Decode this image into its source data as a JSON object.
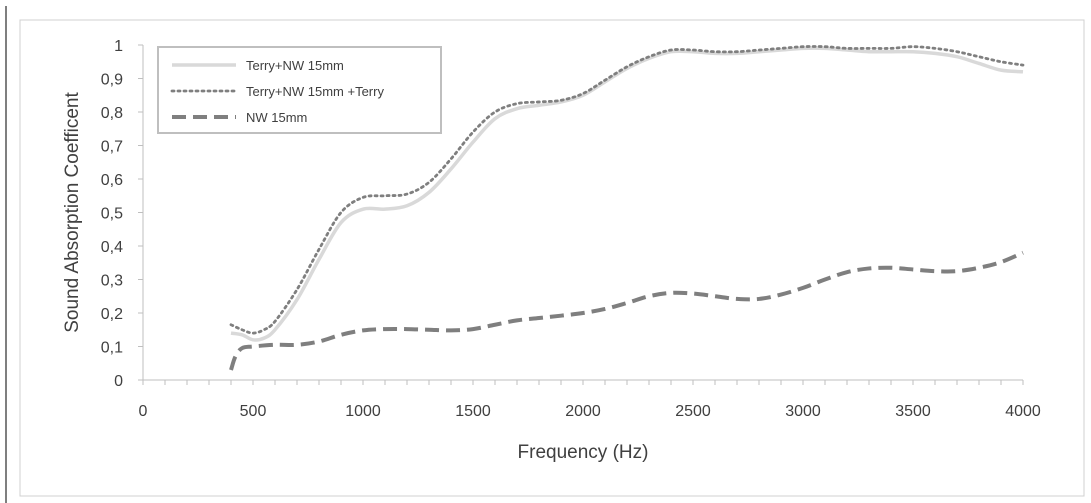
{
  "chart_data": {
    "type": "line",
    "title": "",
    "xlabel": "Frequency (Hz)",
    "ylabel": "Sound Absorption Coefficent",
    "xlim": [
      0,
      4000
    ],
    "ylim": [
      0,
      1
    ],
    "x_ticks": [
      "0",
      "500",
      "1000",
      "1500",
      "2000",
      "2500",
      "3000",
      "3500",
      "4000"
    ],
    "y_ticks": [
      "0",
      "0,1",
      "0,2",
      "0,3",
      "0,4",
      "0,5",
      "0,6",
      "0,7",
      "0,8",
      "0,9",
      "1"
    ],
    "grid": false,
    "legend_position": "top-left",
    "series": [
      {
        "name": "Terry+NW 15mm",
        "color": "#d9d9d9",
        "style": "solid",
        "x": [
          400,
          450,
          500,
          550,
          600,
          700,
          800,
          900,
          1000,
          1100,
          1200,
          1300,
          1400,
          1500,
          1600,
          1700,
          1800,
          1900,
          2000,
          2100,
          2200,
          2300,
          2400,
          2500,
          2600,
          2700,
          2800,
          2900,
          3000,
          3100,
          3200,
          3300,
          3400,
          3500,
          3600,
          3700,
          3800,
          3900,
          4000
        ],
        "values": [
          0.14,
          0.135,
          0.12,
          0.125,
          0.15,
          0.24,
          0.36,
          0.47,
          0.51,
          0.51,
          0.52,
          0.56,
          0.63,
          0.71,
          0.78,
          0.81,
          0.82,
          0.83,
          0.85,
          0.89,
          0.93,
          0.96,
          0.98,
          0.98,
          0.975,
          0.975,
          0.98,
          0.985,
          0.99,
          0.99,
          0.985,
          0.98,
          0.98,
          0.98,
          0.975,
          0.965,
          0.945,
          0.925,
          0.92
        ]
      },
      {
        "name": "Terry+NW 15mm +Terry",
        "color": "#7f7f7f",
        "style": "dotted",
        "x": [
          400,
          450,
          500,
          550,
          600,
          700,
          800,
          900,
          1000,
          1100,
          1200,
          1300,
          1400,
          1500,
          1600,
          1700,
          1800,
          1900,
          2000,
          2100,
          2200,
          2300,
          2400,
          2500,
          2600,
          2700,
          2800,
          2900,
          3000,
          3100,
          3200,
          3300,
          3400,
          3500,
          3600,
          3700,
          3800,
          3900,
          4000
        ],
        "values": [
          0.165,
          0.15,
          0.14,
          0.15,
          0.175,
          0.27,
          0.39,
          0.5,
          0.545,
          0.55,
          0.555,
          0.59,
          0.66,
          0.74,
          0.8,
          0.825,
          0.83,
          0.835,
          0.855,
          0.895,
          0.935,
          0.965,
          0.985,
          0.985,
          0.98,
          0.98,
          0.985,
          0.99,
          0.995,
          0.995,
          0.99,
          0.99,
          0.99,
          0.995,
          0.99,
          0.98,
          0.965,
          0.95,
          0.94
        ]
      },
      {
        "name": "NW 15mm",
        "color": "#7f7f7f",
        "style": "dashed",
        "x": [
          400,
          420,
          450,
          500,
          600,
          700,
          800,
          900,
          1000,
          1100,
          1200,
          1300,
          1400,
          1500,
          1600,
          1700,
          1800,
          1900,
          2000,
          2100,
          2200,
          2300,
          2400,
          2500,
          2600,
          2700,
          2800,
          2900,
          3000,
          3100,
          3200,
          3300,
          3400,
          3500,
          3600,
          3700,
          3800,
          3900,
          4000
        ],
        "values": [
          0.03,
          0.07,
          0.095,
          0.1,
          0.105,
          0.105,
          0.115,
          0.135,
          0.148,
          0.152,
          0.152,
          0.15,
          0.148,
          0.152,
          0.165,
          0.178,
          0.185,
          0.192,
          0.2,
          0.212,
          0.23,
          0.25,
          0.26,
          0.258,
          0.25,
          0.242,
          0.242,
          0.255,
          0.275,
          0.3,
          0.322,
          0.333,
          0.335,
          0.33,
          0.325,
          0.325,
          0.335,
          0.352,
          0.38
        ]
      }
    ]
  }
}
